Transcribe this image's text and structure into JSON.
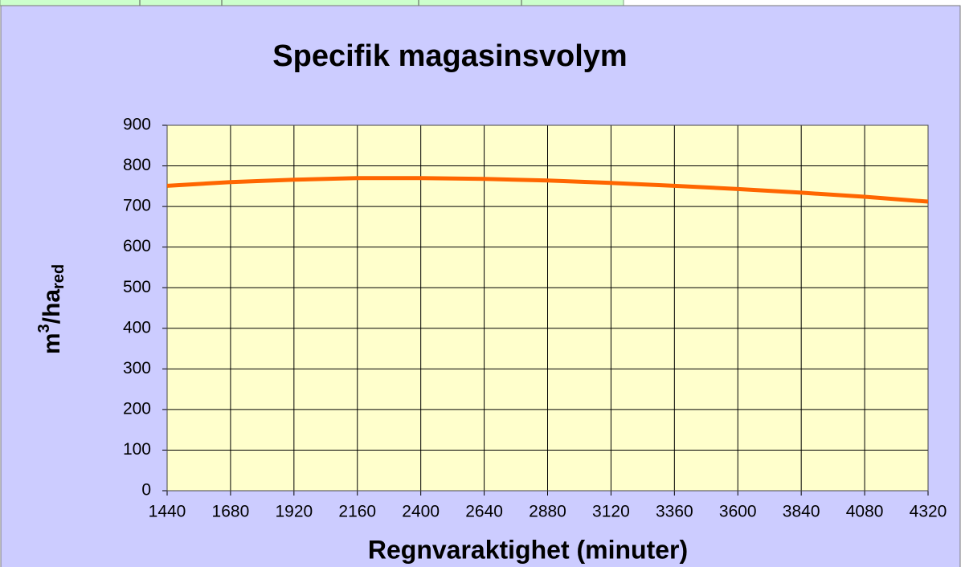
{
  "chart_data": {
    "type": "line",
    "title": "Specifik magasinsvolym",
    "x_label": "Regnvaraktighet (minuter)",
    "y_label": {
      "base": "m",
      "sup": "3",
      "mid": "/ha",
      "sub": "red"
    },
    "x": [
      1440,
      1680,
      1920,
      2160,
      2400,
      2640,
      2880,
      3120,
      3360,
      3600,
      3840,
      4080,
      4320
    ],
    "series": [
      {
        "name": "Specifik magasinsvolym",
        "color": "#ff6600",
        "values": [
          751,
          760,
          766,
          770,
          770,
          768,
          764,
          758,
          751,
          743,
          734,
          724,
          712
        ]
      }
    ],
    "xlim": [
      1440,
      4320
    ],
    "xticks": [
      1440,
      1680,
      1920,
      2160,
      2400,
      2640,
      2880,
      3120,
      3360,
      3600,
      3840,
      4080,
      4320
    ],
    "ylim": [
      0,
      900
    ],
    "yticks": [
      0,
      100,
      200,
      300,
      400,
      500,
      600,
      700,
      800,
      900
    ],
    "grid": true,
    "legend": false
  }
}
